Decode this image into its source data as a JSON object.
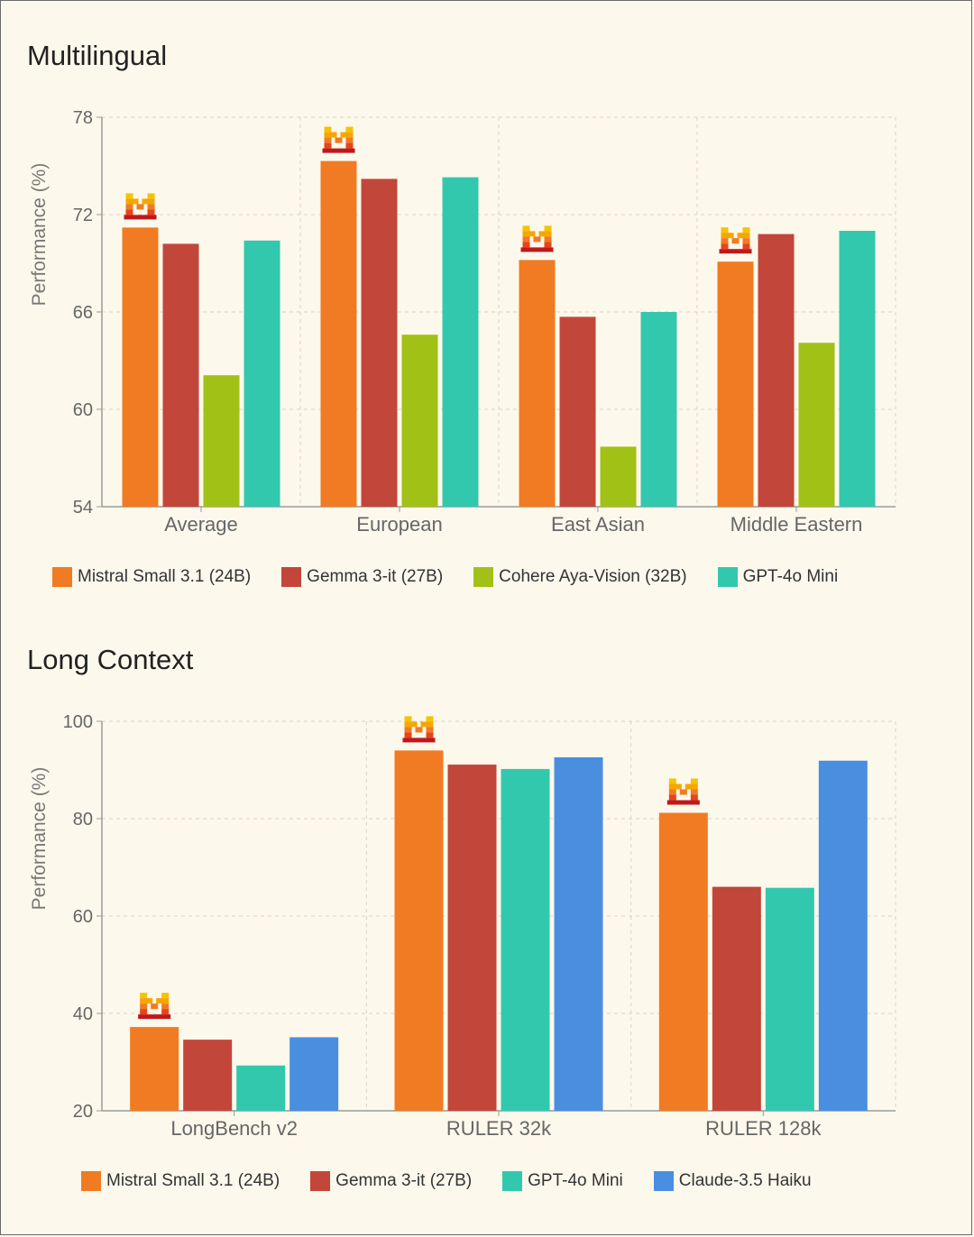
{
  "colors": {
    "mistral": "#f07b22",
    "gemma": "#c3463a",
    "cohere": "#a2c117",
    "gpt": "#32c8ae",
    "claude": "#4a8ee0",
    "grid": "#d9d4c6",
    "axis": "#9a9a9a",
    "text": "#555555",
    "tick": "#666666"
  },
  "chart_data": [
    {
      "type": "bar",
      "title": "Multilingual",
      "ylabel": "Performance (%)",
      "xlabel": "",
      "ylim": [
        54,
        78
      ],
      "yticks": [
        54,
        60,
        66,
        72,
        78
      ],
      "categories": [
        "Average",
        "European",
        "East Asian",
        "Middle Eastern"
      ],
      "series": [
        {
          "name": "Mistral Small 3.1 (24B)",
          "color_key": "mistral",
          "values": [
            71.2,
            75.3,
            69.2,
            69.1
          ]
        },
        {
          "name": "Gemma 3-it (27B)",
          "color_key": "gemma",
          "values": [
            70.2,
            74.2,
            65.7,
            70.8
          ]
        },
        {
          "name": "Cohere Aya-Vision (32B)",
          "color_key": "cohere",
          "values": [
            62.1,
            64.6,
            57.7,
            64.1
          ]
        },
        {
          "name": "GPT-4o Mini",
          "color_key": "gpt",
          "values": [
            70.4,
            74.3,
            66.0,
            71.0
          ]
        }
      ],
      "highlight_series": 0,
      "legend": "bottom"
    },
    {
      "type": "bar",
      "title": "Long Context",
      "ylabel": "Performance (%)",
      "xlabel": "",
      "ylim": [
        20,
        100
      ],
      "yticks": [
        20,
        40,
        60,
        80,
        100
      ],
      "categories": [
        "LongBench v2",
        "RULER 32k",
        "RULER 128k"
      ],
      "series": [
        {
          "name": "Mistral Small 3.1 (24B)",
          "color_key": "mistral",
          "values": [
            37.2,
            94.0,
            81.2
          ]
        },
        {
          "name": "Gemma 3-it (27B)",
          "color_key": "gemma",
          "values": [
            34.6,
            91.1,
            66.0
          ]
        },
        {
          "name": "GPT-4o Mini",
          "color_key": "gpt",
          "values": [
            29.3,
            90.2,
            65.8
          ]
        },
        {
          "name": "Claude-3.5 Haiku",
          "color_key": "claude",
          "values": [
            35.1,
            92.6,
            91.9
          ]
        }
      ],
      "highlight_series": 0,
      "legend": "bottom"
    }
  ]
}
